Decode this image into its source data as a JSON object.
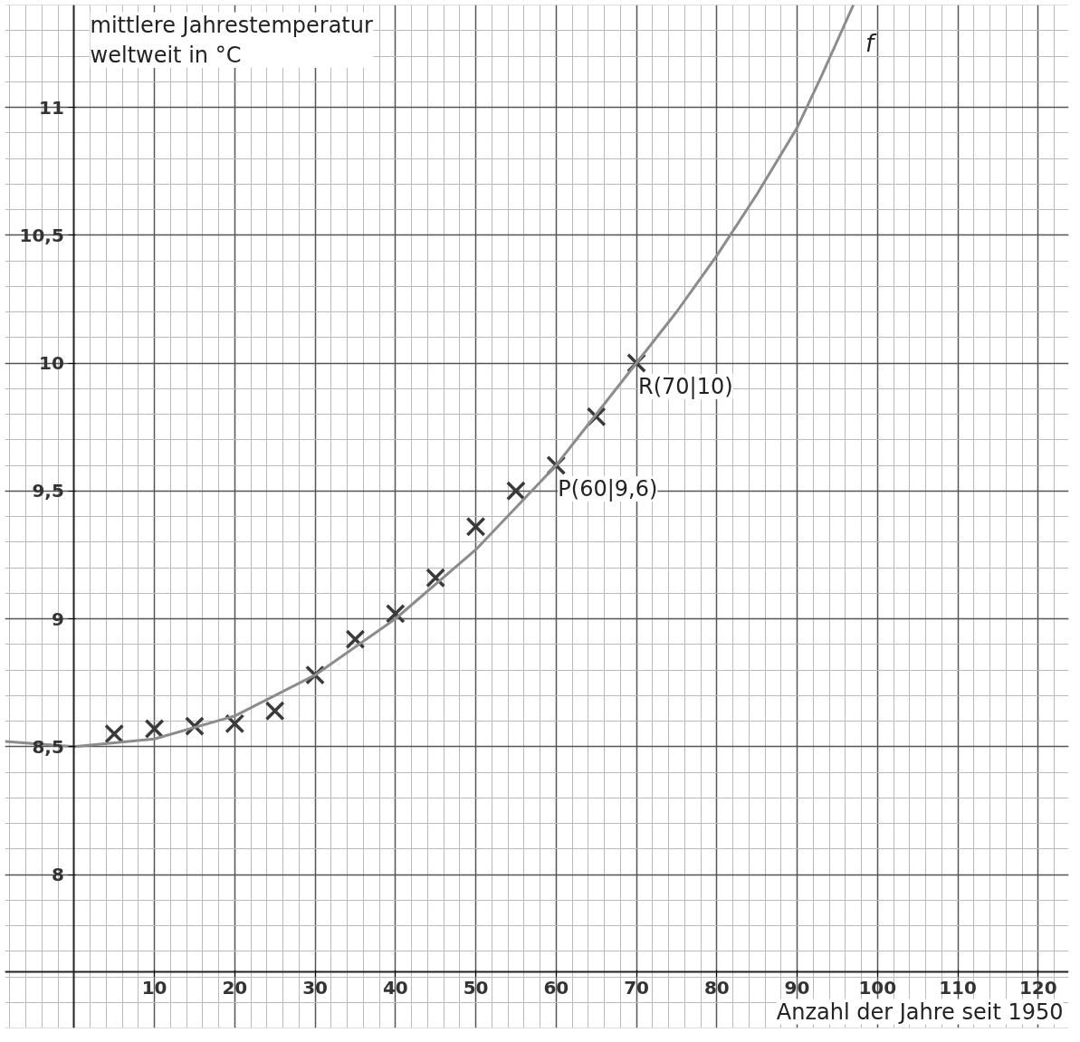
{
  "chart_data": {
    "type": "scatter",
    "xlabel": "Anzahl der Jahre seit 1950",
    "ylabel": "mittlere Jahrestemperatur\nweltweit in °C",
    "xlim": [
      -8.6,
      123.8
    ],
    "ylim": [
      7.4,
      11.4
    ],
    "xticks": [
      10,
      20,
      30,
      40,
      50,
      60,
      70,
      80,
      90,
      100,
      110,
      120
    ],
    "yticks": [
      8,
      {
        "value": 8.5,
        "label": "8,5"
      },
      9,
      {
        "value": 9.5,
        "label": "9,5"
      },
      10,
      {
        "value": 10.5,
        "label": "10,5"
      },
      11
    ],
    "grid": true,
    "series": [
      {
        "marker": "cross",
        "color": "#3a3a3a",
        "x": [
          5,
          10,
          15,
          20,
          25,
          30,
          35,
          40,
          45,
          50,
          55,
          60,
          65,
          70
        ],
        "values": [
          8.55,
          8.57,
          8.58,
          8.59,
          8.64,
          8.78,
          8.92,
          9.02,
          9.16,
          9.36,
          9.5,
          9.6,
          9.79,
          10.0
        ]
      },
      {
        "type": "line",
        "name": "f",
        "color": "#8c8c8c",
        "x": [
          -8.6,
          0,
          10,
          20,
          30,
          40,
          50,
          60,
          70,
          75,
          80,
          85,
          90,
          93,
          97
        ],
        "values": [
          8.52,
          8.5,
          8.53,
          8.62,
          8.78,
          9.0,
          9.27,
          9.6,
          10.0,
          10.2,
          10.42,
          10.66,
          10.92,
          11.12,
          11.4
        ]
      }
    ],
    "annotations": [
      {
        "text": "R(70|10)",
        "x": 70,
        "y": 10
      },
      {
        "text": "P(60|9,6)",
        "x": 60,
        "y": 9.6
      }
    ]
  }
}
